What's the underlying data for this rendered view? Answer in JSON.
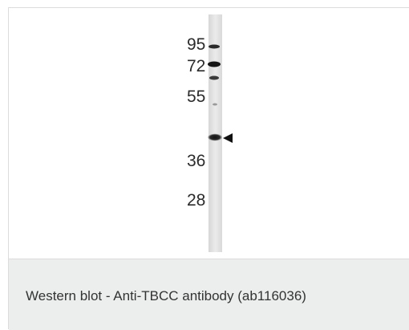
{
  "figure": {
    "caption": "Western blot - Anti-TBCC antibody (ab116036)",
    "markers": [
      {
        "label": "95"
      },
      {
        "label": "72"
      },
      {
        "label": "55"
      },
      {
        "label": "36"
      },
      {
        "label": "28"
      }
    ],
    "arrow_icon": "left-pointing-triangle",
    "colors": {
      "caption_background": "#eceeee",
      "lane": "#e6e6e6",
      "band": "#1e1e1e",
      "caption_text": "#333333"
    }
  }
}
